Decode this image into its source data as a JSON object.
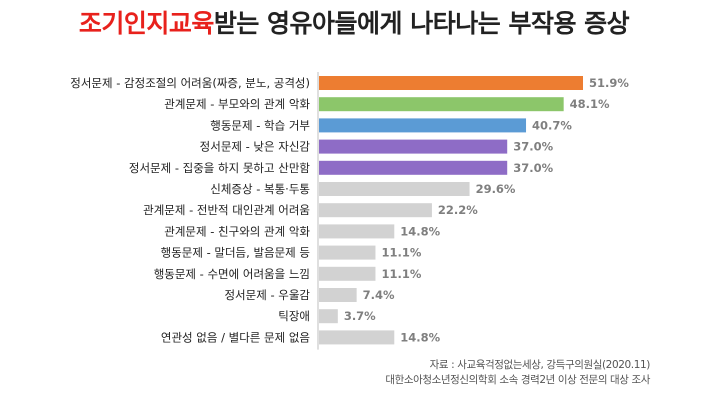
{
  "title": {
    "highlight": "조기인지교육",
    "rest": "받는 영유아들에게 나타나는 부작용 증상"
  },
  "chart_data": {
    "type": "bar",
    "orientation": "horizontal",
    "title": "조기인지교육받는 영유아들에게 나타나는 부작용 증상",
    "unit": "%",
    "xlim": [
      0,
      60
    ],
    "grid": false,
    "legend": "none",
    "categories": [
      "정서문제 - 감정조절의 어려움(짜증, 분노, 공격성)",
      "관계문제 - 부모와의 관계 악화",
      "행동문제 - 학습 거부",
      "정서문제 - 낮은 자신감",
      "정서문제 - 집중을 하지 못하고 산만함",
      "신체증상 - 복통·두통",
      "관계문제 - 전반적 대인관계 어려움",
      "관계문제 - 친구와의 관계 악화",
      "행동문제 - 말더듬, 발음문제 등",
      "행동문제 - 수면에 어려움을 느낌",
      "정서문제 - 우울감",
      "틱장애",
      "연관성 없음 / 별다른 문제 없음"
    ],
    "values": [
      51.9,
      48.1,
      40.7,
      37.0,
      37.0,
      29.6,
      22.2,
      14.8,
      11.1,
      11.1,
      7.4,
      3.7,
      14.8
    ],
    "value_labels": [
      "51.9%",
      "48.1%",
      "40.7%",
      "37.0%",
      "37.0%",
      "29.6%",
      "22.2%",
      "14.8%",
      "11.1%",
      "11.1%",
      "7.4%",
      "3.7%",
      "14.8%"
    ],
    "colors": [
      "#ed7d31",
      "#8cc66a",
      "#5b9bd5",
      "#8e6cc6",
      "#8e6cc6",
      "#d2d2d2",
      "#d2d2d2",
      "#d2d2d2",
      "#d2d2d2",
      "#d2d2d2",
      "#d2d2d2",
      "#d2d2d2",
      "#d2d2d2"
    ]
  },
  "source": {
    "line1": "자료 : 사교육걱정없는세상, 강득구의원실(2020.11)",
    "line2": "대한소아청소년정신의학회 소속 경력2년 이상 전문의 대상 조사"
  }
}
